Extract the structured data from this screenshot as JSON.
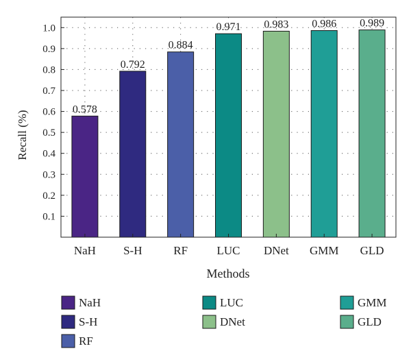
{
  "chart_data": {
    "type": "bar",
    "title": "",
    "xlabel": "Methods",
    "ylabel": "Recall (%)",
    "ylim": [
      0,
      1.05
    ],
    "yticks": [
      0.1,
      0.2,
      0.3,
      0.4,
      0.5,
      0.6,
      0.7,
      0.8,
      0.9,
      1.0
    ],
    "ytick_labels": [
      "0.1",
      "0.2",
      "0.3",
      "0.4",
      "0.5",
      "0.6",
      "0.7",
      "0.8",
      "0.9",
      "1.0"
    ],
    "grid": true,
    "legend_position": "bottom",
    "categories": [
      "NaH",
      "S-H",
      "RF",
      "LUC",
      "DNet",
      "GMM",
      "GLD"
    ],
    "values": [
      0.578,
      0.792,
      0.884,
      0.971,
      0.983,
      0.986,
      0.989
    ],
    "value_labels": [
      "0.578",
      "0.792",
      "0.884",
      "0.971",
      "0.983",
      "0.986",
      "0.989"
    ],
    "colors": [
      "#4a2585",
      "#2f2a80",
      "#4b5fa8",
      "#0c8a85",
      "#8cc08a",
      "#1f9e96",
      "#5aae8c"
    ],
    "legend": [
      {
        "label": "NaH",
        "color": "#4a2585"
      },
      {
        "label": "S-H",
        "color": "#2f2a80"
      },
      {
        "label": "RF",
        "color": "#4b5fa8"
      },
      {
        "label": "LUC",
        "color": "#0c8a85"
      },
      {
        "label": "DNet",
        "color": "#8cc08a"
      },
      {
        "label": "GMM",
        "color": "#1f9e96"
      },
      {
        "label": "GLD",
        "color": "#5aae8c"
      }
    ]
  }
}
